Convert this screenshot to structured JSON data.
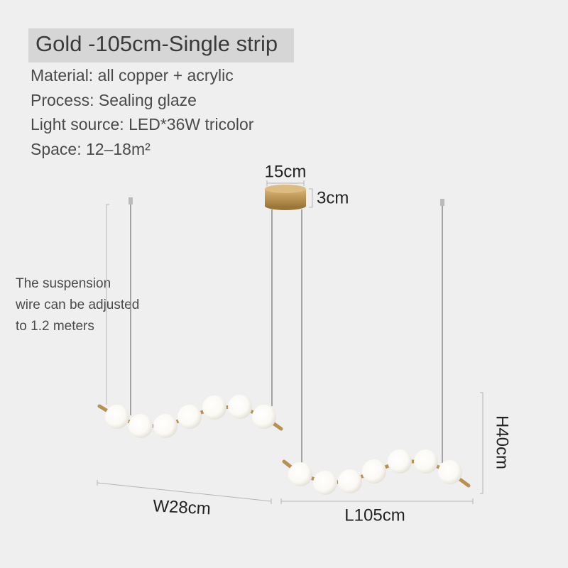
{
  "header": {
    "title": "Gold -105cm-Single strip"
  },
  "specs": [
    "Material: all copper + acrylic",
    "Process: Sealing glaze",
    "Light source: LED*36W tricolor",
    "Space: 12–18m²"
  ],
  "note": [
    "The suspension",
    "wire can be adjusted",
    "to 1.2 meters"
  ],
  "dimensions": {
    "canopy_width": "15cm",
    "canopy_height": "3cm",
    "width": "W28cm",
    "length": "L105cm",
    "height": "H40cm"
  }
}
